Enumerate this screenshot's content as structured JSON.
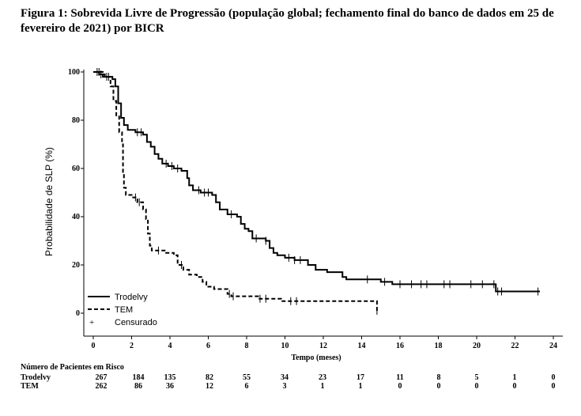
{
  "caption": "Figura 1: Sobrevida Livre de Progressão (população global; fechamento final do banco de dados em 25 de fevereiro de 2021) por BICR",
  "chart_data": {
    "type": "line",
    "subtype": "kaplan-meier step plot",
    "xlabel": "Tempo (meses)",
    "ylabel": "Probabilidade de SLP (%)",
    "xlim": [
      0,
      24
    ],
    "ylim": [
      0,
      100
    ],
    "x_ticks": [
      0,
      2,
      4,
      6,
      8,
      10,
      12,
      14,
      16,
      18,
      20,
      22,
      24
    ],
    "y_ticks": [
      0,
      20,
      40,
      60,
      80,
      100
    ],
    "grid": false,
    "legend_position": "bottom-left",
    "legend": [
      "Trodelvy",
      "TEM",
      "Censurado"
    ],
    "censor_symbol": "+",
    "series": [
      {
        "name": "Trodelvy",
        "style": "solid",
        "color": "#000000",
        "points": [
          [
            0,
            100
          ],
          [
            0.3,
            99
          ],
          [
            0.6,
            98
          ],
          [
            1.0,
            97
          ],
          [
            1.15,
            94
          ],
          [
            1.3,
            87
          ],
          [
            1.45,
            81
          ],
          [
            1.6,
            78
          ],
          [
            1.8,
            76
          ],
          [
            2.2,
            75
          ],
          [
            2.6,
            74
          ],
          [
            2.8,
            71
          ],
          [
            3.0,
            69
          ],
          [
            3.2,
            66
          ],
          [
            3.4,
            64
          ],
          [
            3.6,
            62
          ],
          [
            3.9,
            61
          ],
          [
            4.2,
            60
          ],
          [
            4.6,
            59
          ],
          [
            4.9,
            56
          ],
          [
            5.0,
            53
          ],
          [
            5.2,
            51
          ],
          [
            5.6,
            50
          ],
          [
            6.2,
            49
          ],
          [
            6.4,
            46
          ],
          [
            6.6,
            43
          ],
          [
            7.0,
            41
          ],
          [
            7.5,
            40
          ],
          [
            7.7,
            37
          ],
          [
            7.9,
            35
          ],
          [
            8.1,
            34
          ],
          [
            8.3,
            31
          ],
          [
            9.0,
            30
          ],
          [
            9.2,
            27
          ],
          [
            9.4,
            25
          ],
          [
            9.6,
            24
          ],
          [
            10.0,
            23
          ],
          [
            10.5,
            22
          ],
          [
            11.2,
            20
          ],
          [
            11.6,
            18
          ],
          [
            12.2,
            17
          ],
          [
            13.0,
            15
          ],
          [
            13.2,
            14
          ],
          [
            14.0,
            14
          ],
          [
            15.0,
            13
          ],
          [
            15.6,
            12
          ],
          [
            20.8,
            12
          ],
          [
            21.0,
            9
          ],
          [
            23.3,
            9
          ]
        ],
        "censor_x": [
          0.2,
          0.4,
          0.7,
          2.3,
          2.5,
          3.8,
          4.1,
          4.4,
          5.5,
          5.8,
          6.0,
          7.2,
          8.5,
          9.0,
          10.2,
          10.5,
          10.8,
          14.3,
          15.2,
          16.0,
          16.6,
          17.1,
          17.4,
          18.3,
          18.6,
          19.7,
          20.3,
          20.9,
          21.1,
          21.3,
          23.2
        ],
        "risk_label": "Trodelvy",
        "at_risk": [
          267,
          184,
          135,
          82,
          55,
          34,
          23,
          17,
          11,
          8,
          5,
          1,
          0
        ]
      },
      {
        "name": "TEM",
        "style": "dashed",
        "color": "#000000",
        "points": [
          [
            0,
            100
          ],
          [
            0.5,
            98
          ],
          [
            0.9,
            94
          ],
          [
            1.05,
            88
          ],
          [
            1.2,
            82
          ],
          [
            1.35,
            75
          ],
          [
            1.5,
            70
          ],
          [
            1.55,
            58
          ],
          [
            1.6,
            52
          ],
          [
            1.7,
            49
          ],
          [
            2.0,
            48
          ],
          [
            2.3,
            46
          ],
          [
            2.6,
            43
          ],
          [
            2.75,
            39
          ],
          [
            2.85,
            33
          ],
          [
            2.95,
            28
          ],
          [
            3.05,
            26
          ],
          [
            3.8,
            25
          ],
          [
            4.2,
            24
          ],
          [
            4.4,
            20
          ],
          [
            4.7,
            18
          ],
          [
            5.0,
            16
          ],
          [
            5.4,
            15
          ],
          [
            5.7,
            13
          ],
          [
            5.9,
            11
          ],
          [
            6.3,
            10
          ],
          [
            7.0,
            8
          ],
          [
            7.2,
            7
          ],
          [
            8.6,
            6
          ],
          [
            9.5,
            6
          ],
          [
            9.8,
            5
          ],
          [
            14.6,
            5
          ],
          [
            14.8,
            1
          ]
        ],
        "censor_x": [
          0.3,
          0.8,
          2.2,
          2.4,
          3.4,
          4.6,
          7.1,
          7.3,
          8.7,
          9.0,
          10.3,
          10.6,
          14.8
        ],
        "risk_label": "TEM",
        "at_risk": [
          262,
          86,
          36,
          12,
          6,
          3,
          1,
          1,
          0,
          0,
          0,
          0,
          0
        ]
      }
    ],
    "risk_table": {
      "title": "Número de Pacientes em Risco",
      "timepoints": [
        0,
        2,
        4,
        6,
        8,
        10,
        12,
        14,
        16,
        18,
        20,
        22,
        24
      ]
    }
  }
}
